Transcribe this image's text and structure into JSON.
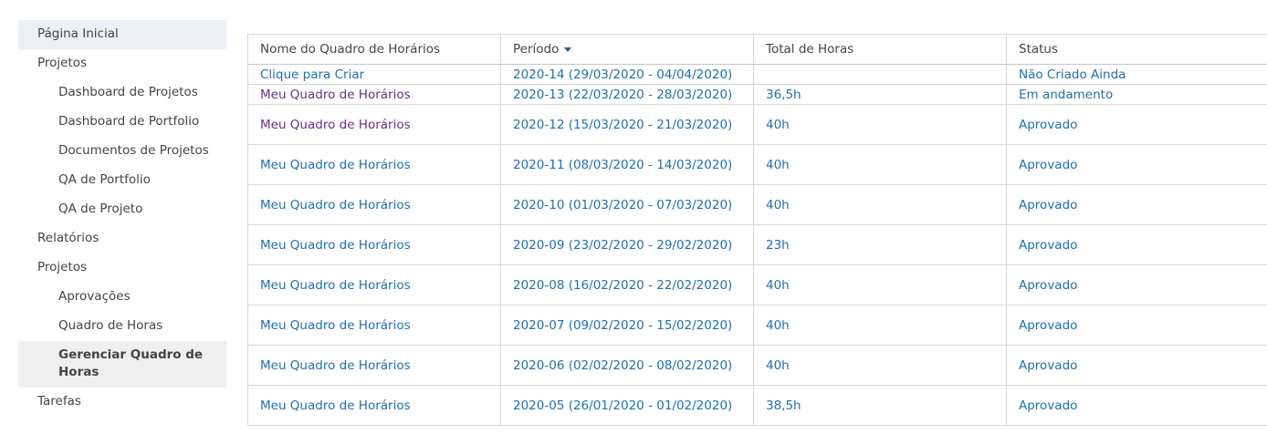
{
  "sidebar": {
    "items": [
      {
        "label": "Página Inicial"
      },
      {
        "label": "Projetos"
      },
      {
        "label": "Dashboard de Projetos"
      },
      {
        "label": "Dashboard de Portfolio"
      },
      {
        "label": "Documentos de Projetos"
      },
      {
        "label": "QA de Portfolio"
      },
      {
        "label": "QA de Projeto"
      },
      {
        "label": "Relatórios"
      },
      {
        "label": "Projetos"
      },
      {
        "label": "Aprovações"
      },
      {
        "label": "Quadro de Horas"
      },
      {
        "label": "Gerenciar Quadro de Horas"
      },
      {
        "label": "Tarefas"
      }
    ]
  },
  "table": {
    "headers": [
      "Nome do Quadro de Horários",
      "Período",
      "Total de Horas",
      "Status"
    ],
    "rows": [
      {
        "name": "Clique para Criar",
        "period": "2020-14 (29/03/2020 - 04/04/2020)",
        "hours": "",
        "status": "Não Criado Ainda"
      },
      {
        "name": "Meu Quadro de Horários",
        "period": "2020-13 (22/03/2020 - 28/03/2020)",
        "hours": "36,5h",
        "status": "Em andamento"
      },
      {
        "name": "Meu Quadro de Horários",
        "period": "2020-12 (15/03/2020 - 21/03/2020)",
        "hours": "40h",
        "status": "Aprovado"
      },
      {
        "name": "Meu Quadro de Horários",
        "period": "2020-11 (08/03/2020 - 14/03/2020)",
        "hours": "40h",
        "status": "Aprovado"
      },
      {
        "name": "Meu Quadro de Horários",
        "period": "2020-10 (01/03/2020 - 07/03/2020)",
        "hours": "40h",
        "status": "Aprovado"
      },
      {
        "name": "Meu Quadro de Horários",
        "period": "2020-09 (23/02/2020 - 29/02/2020)",
        "hours": "23h",
        "status": "Aprovado"
      },
      {
        "name": "Meu Quadro de Horários",
        "period": "2020-08 (16/02/2020 - 22/02/2020)",
        "hours": "40h",
        "status": "Aprovado"
      },
      {
        "name": "Meu Quadro de Horários",
        "period": "2020-07 (09/02/2020 - 15/02/2020)",
        "hours": "40h",
        "status": "Aprovado"
      },
      {
        "name": "Meu Quadro de Horários",
        "period": "2020-06 (02/02/2020 - 08/02/2020)",
        "hours": "40h",
        "status": "Aprovado"
      },
      {
        "name": "Meu Quadro de Horários",
        "period": "2020-05 (26/01/2020 - 01/02/2020)",
        "hours": "38,5h",
        "status": "Aprovado"
      }
    ]
  },
  "colors": {
    "link": "#1f6fb5",
    "visited_link": "#6b2e8c",
    "nav_highlight": "#eaf1f9",
    "nav_selected": "#efefef"
  }
}
